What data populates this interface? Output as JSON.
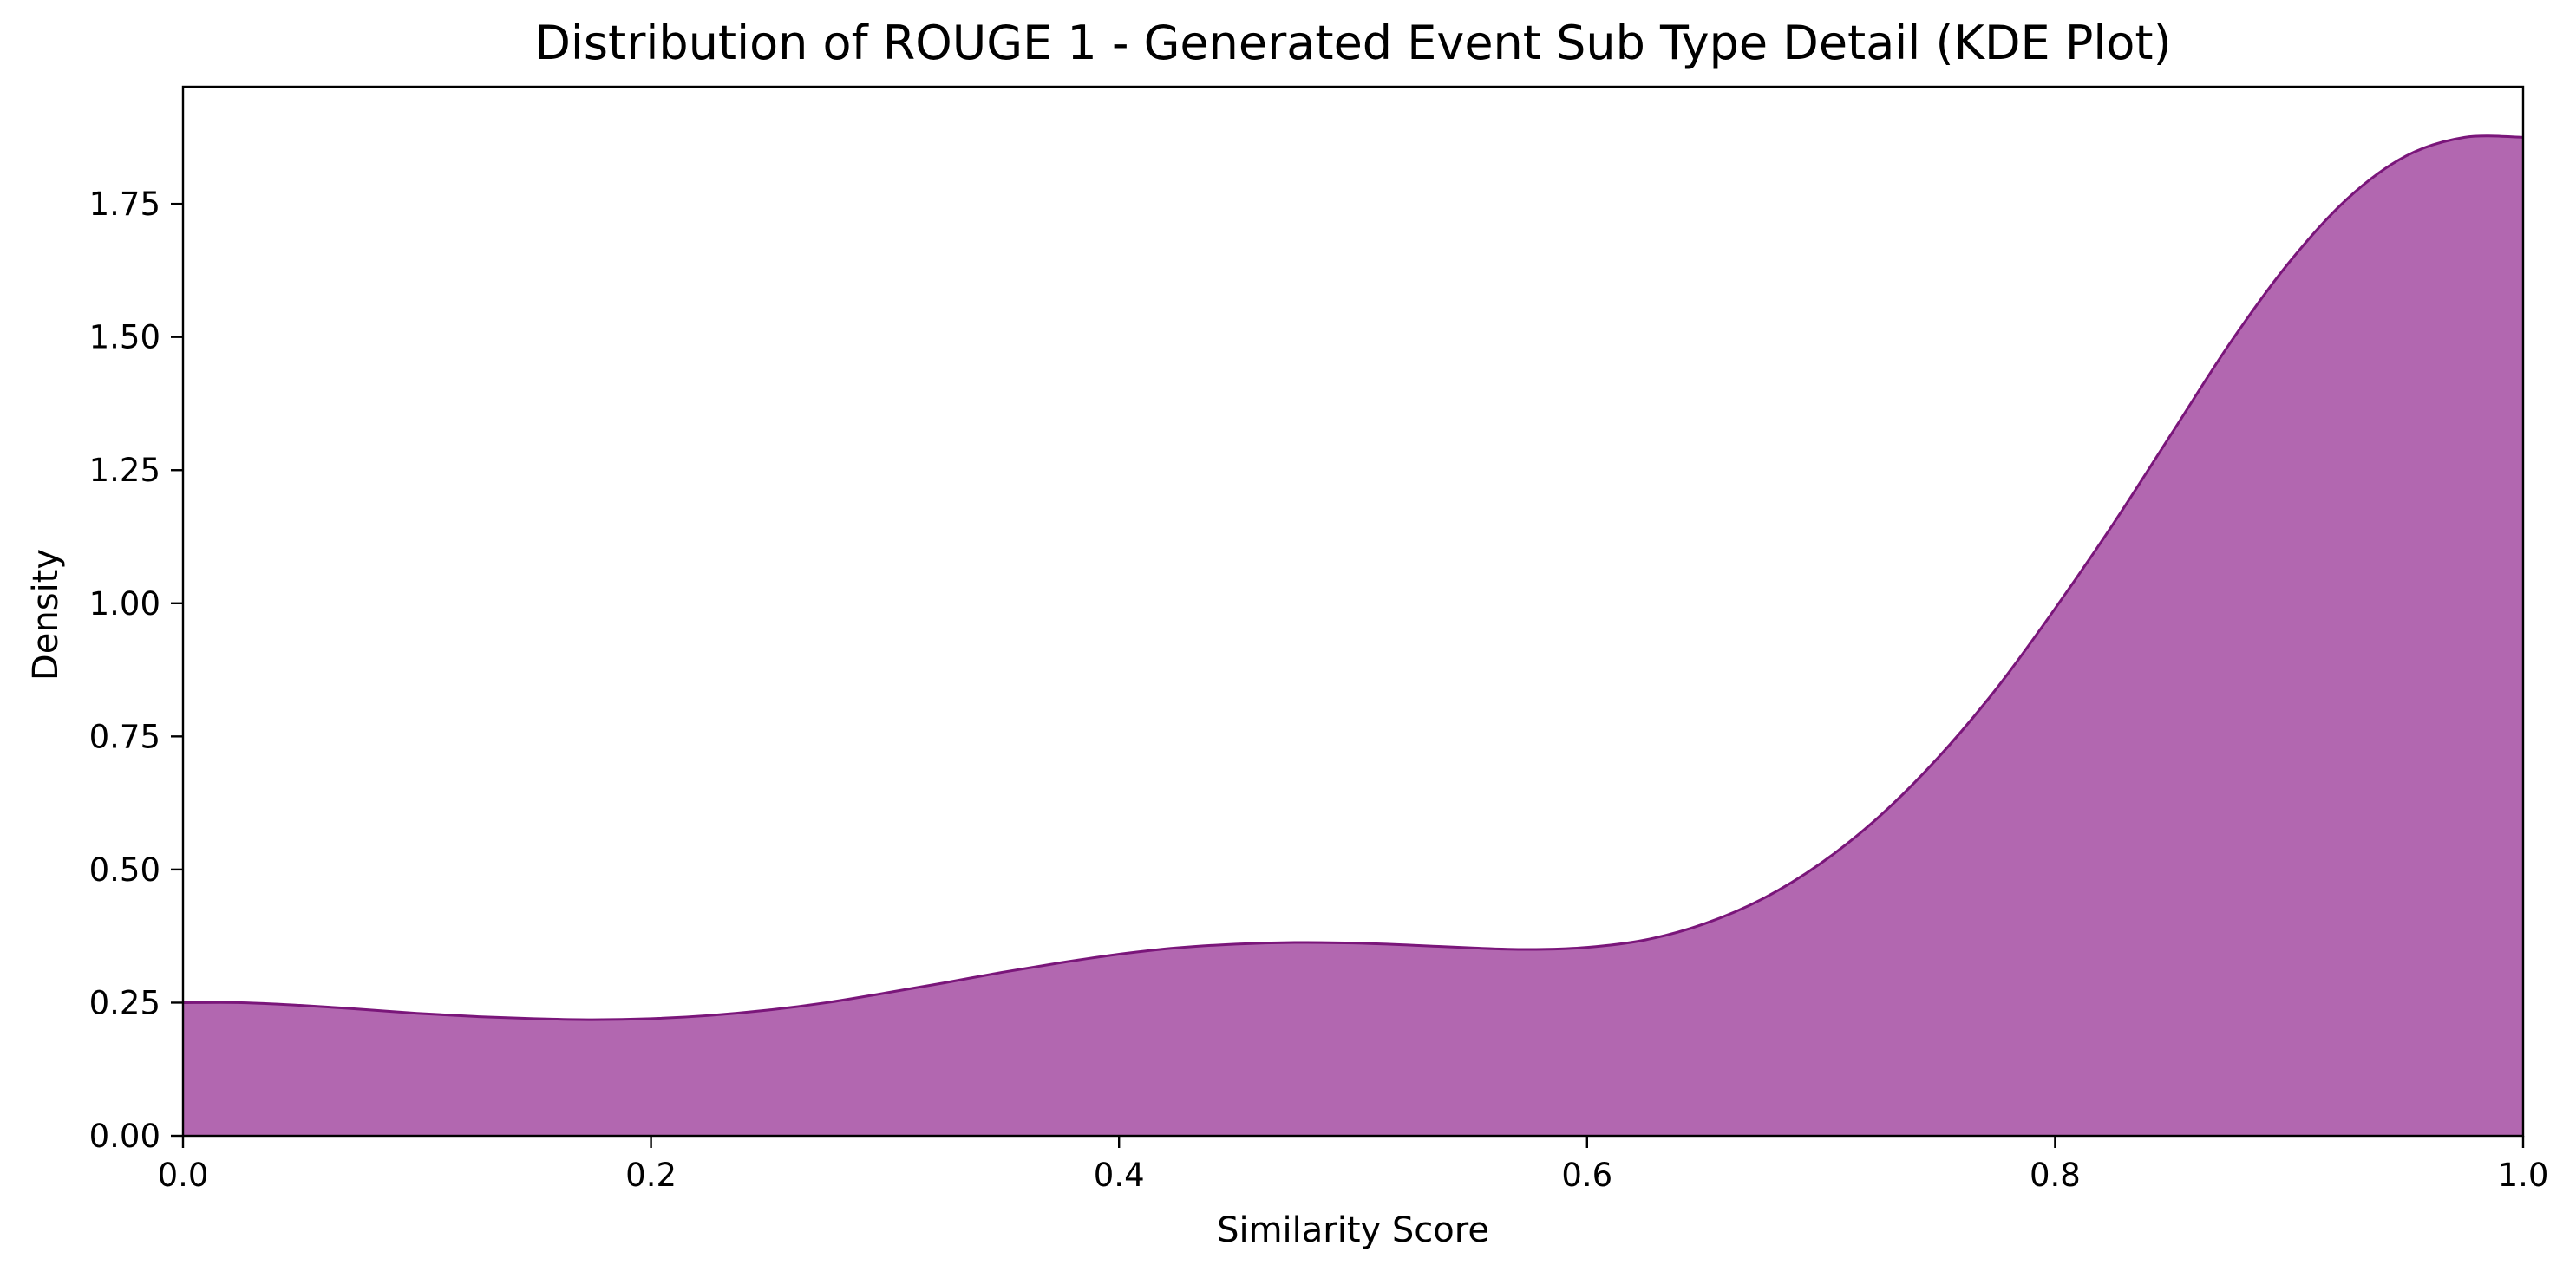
{
  "chart_data": {
    "type": "area",
    "title": "Distribution of ROUGE 1 - Generated Event Sub Type Detail (KDE Plot)",
    "xlabel": "Similarity Score",
    "ylabel": "Density",
    "xlim": [
      0.0,
      1.0
    ],
    "ylim": [
      0.0,
      1.97
    ],
    "x_ticks": [
      0.0,
      0.2,
      0.4,
      0.6,
      0.8,
      1.0
    ],
    "x_tick_labels": [
      "0.0",
      "0.2",
      "0.4",
      "0.6",
      "0.8",
      "1.0"
    ],
    "y_ticks": [
      0.0,
      0.25,
      0.5,
      0.75,
      1.0,
      1.25,
      1.5,
      1.75
    ],
    "y_tick_labels": [
      "0.00",
      "0.25",
      "0.50",
      "0.75",
      "1.00",
      "1.25",
      "1.50",
      "1.75"
    ],
    "grid": false,
    "legend": "none",
    "colors": {
      "fill": "#b267b0",
      "line": "#7a167a"
    },
    "series": [
      {
        "x": [
          0.0,
          0.025,
          0.05,
          0.075,
          0.1,
          0.125,
          0.15,
          0.175,
          0.2,
          0.225,
          0.25,
          0.275,
          0.3,
          0.325,
          0.35,
          0.375,
          0.4,
          0.425,
          0.45,
          0.475,
          0.5,
          0.525,
          0.55,
          0.575,
          0.6,
          0.625,
          0.65,
          0.675,
          0.7,
          0.725,
          0.75,
          0.775,
          0.8,
          0.825,
          0.85,
          0.875,
          0.9,
          0.925,
          0.95,
          0.975,
          1.0
        ],
        "y": [
          0.25,
          0.25,
          0.245,
          0.238,
          0.23,
          0.224,
          0.22,
          0.218,
          0.22,
          0.226,
          0.236,
          0.25,
          0.268,
          0.287,
          0.307,
          0.325,
          0.341,
          0.353,
          0.36,
          0.363,
          0.362,
          0.358,
          0.353,
          0.35,
          0.354,
          0.368,
          0.398,
          0.445,
          0.512,
          0.6,
          0.71,
          0.84,
          0.99,
          1.15,
          1.32,
          1.49,
          1.64,
          1.76,
          1.84,
          1.875,
          1.875
        ]
      }
    ]
  }
}
